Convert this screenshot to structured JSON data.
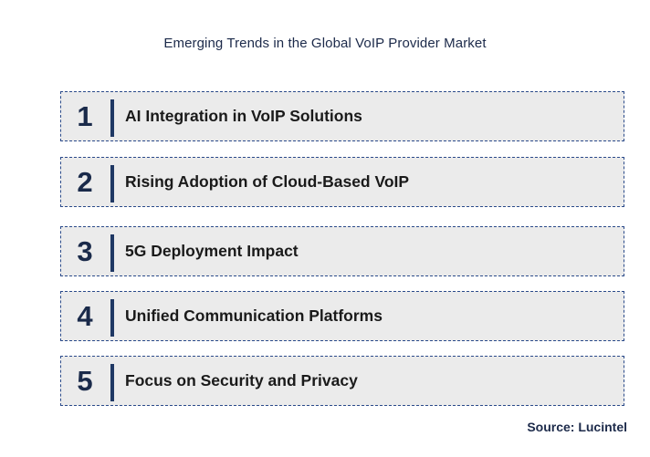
{
  "title": "Emerging Trends in the Global VoIP Provider Market",
  "trends": [
    {
      "number": "1",
      "label": "AI Integration in VoIP Solutions"
    },
    {
      "number": "2",
      "label": "Rising Adoption of Cloud-Based VoIP"
    },
    {
      "number": "3",
      "label": "5G Deployment Impact"
    },
    {
      "number": "4",
      "label": "Unified Communication Platforms"
    },
    {
      "number": "5",
      "label": "Focus on Security and Privacy"
    }
  ],
  "source": "Source: Lucintel",
  "colors": {
    "row_background": "#ebebeb",
    "row_border": "#2a4a8a",
    "divider_bar": "#1f3864",
    "title_text": "#1c2a4a"
  }
}
